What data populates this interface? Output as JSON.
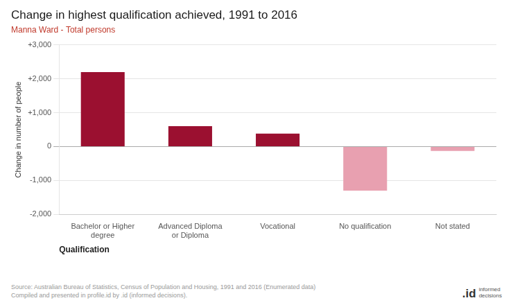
{
  "chart_data": {
    "type": "bar",
    "title": "Change in highest qualification achieved, 1991 to 2016",
    "subtitle": "Manna Ward - Total persons",
    "categories": [
      "Bachelor or Higher\ndegree",
      "Advanced Diploma\nor Diploma",
      "Vocational",
      "No qualification",
      "Not stated"
    ],
    "values": [
      2200,
      600,
      380,
      -1300,
      -130
    ],
    "colors": [
      "#9b1030",
      "#9b1030",
      "#9b1030",
      "#e8a0b0",
      "#e8a0b0"
    ],
    "xlabel": "Qualification",
    "ylabel": "Change in number of people",
    "ylim": [
      -2000,
      3000
    ],
    "yticks": [
      {
        "value": -2000,
        "label": "-2,000"
      },
      {
        "value": -1000,
        "label": "-1,000"
      },
      0,
      {
        "value": 1000,
        "label": "+1,000"
      },
      {
        "value": 2000,
        "label": "+2,000"
      },
      {
        "value": 3000,
        "label": "+3,000"
      }
    ],
    "grid": true,
    "source": "Source: Australian Bureau of Statistics, Census of Population and Housing, 1991 and 2016 (Enumerated data)\nCompiled and presented in profile.id by .id (informed decisions).",
    "annotations": [
      ".id",
      "informed\ndecisions"
    ]
  }
}
